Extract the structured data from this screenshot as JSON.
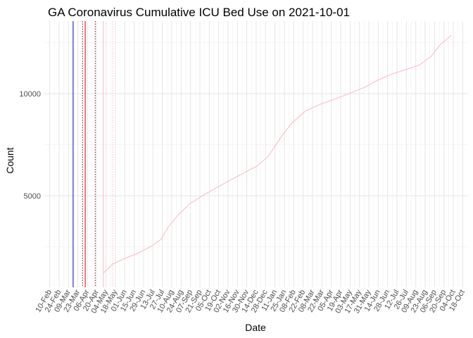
{
  "chart_data": {
    "type": "line",
    "title": "GA Coronavirus Cumulative ICU Bed Use on 2021-10-01",
    "x_label": "Date",
    "y_label": "Count",
    "xlim": [
      "2020-02-01",
      "2021-10-26"
    ],
    "ylim": [
      517,
      13550
    ],
    "yticks": [
      5000,
      10000
    ],
    "yminorticks": [
      2500,
      7500,
      12500
    ],
    "grid": true,
    "xticks": [
      {
        "value": "2020-02-10",
        "label": "10-Feb"
      },
      {
        "value": "2020-02-24",
        "label": "24-Feb"
      },
      {
        "value": "2020-03-09",
        "label": "09-Mar"
      },
      {
        "value": "2020-03-23",
        "label": "23-Mar"
      },
      {
        "value": "2020-04-06",
        "label": "06-Apr"
      },
      {
        "value": "2020-04-20",
        "label": "20-Apr"
      },
      {
        "value": "2020-05-04",
        "label": "04-May"
      },
      {
        "value": "2020-05-18",
        "label": "18-May"
      },
      {
        "value": "2020-06-01",
        "label": "01-Jun"
      },
      {
        "value": "2020-06-15",
        "label": "15-Jun"
      },
      {
        "value": "2020-06-29",
        "label": "29-Jun"
      },
      {
        "value": "2020-07-13",
        "label": "13-Jul"
      },
      {
        "value": "2020-07-27",
        "label": "27-Jul"
      },
      {
        "value": "2020-08-10",
        "label": "10-Aug"
      },
      {
        "value": "2020-08-24",
        "label": "24-Aug"
      },
      {
        "value": "2020-09-07",
        "label": "07-Sep"
      },
      {
        "value": "2020-09-21",
        "label": "21-Sep"
      },
      {
        "value": "2020-10-05",
        "label": "05-Oct"
      },
      {
        "value": "2020-10-19",
        "label": "19-Oct"
      },
      {
        "value": "2020-11-02",
        "label": "02-Nov"
      },
      {
        "value": "2020-11-16",
        "label": "16-Nov"
      },
      {
        "value": "2020-11-30",
        "label": "30-Nov"
      },
      {
        "value": "2020-12-14",
        "label": "14-Dec"
      },
      {
        "value": "2020-12-28",
        "label": "28-Dec"
      },
      {
        "value": "2021-01-11",
        "label": "11-Jan"
      },
      {
        "value": "2021-01-25",
        "label": "25-Jan"
      },
      {
        "value": "2021-02-08",
        "label": "08-Feb"
      },
      {
        "value": "2021-02-22",
        "label": "22-Feb"
      },
      {
        "value": "2021-03-08",
        "label": "08-Mar"
      },
      {
        "value": "2021-03-22",
        "label": "22-Mar"
      },
      {
        "value": "2021-04-05",
        "label": "05-Apr"
      },
      {
        "value": "2021-04-19",
        "label": "19-Apr"
      },
      {
        "value": "2021-05-03",
        "label": "03-May"
      },
      {
        "value": "2021-05-17",
        "label": "17-May"
      },
      {
        "value": "2021-05-31",
        "label": "31-May"
      },
      {
        "value": "2021-06-14",
        "label": "14-Jun"
      },
      {
        "value": "2021-06-28",
        "label": "28-Jun"
      },
      {
        "value": "2021-07-12",
        "label": "12-Jul"
      },
      {
        "value": "2021-07-26",
        "label": "26-Jul"
      },
      {
        "value": "2021-08-09",
        "label": "09-Aug"
      },
      {
        "value": "2021-08-23",
        "label": "23-Aug"
      },
      {
        "value": "2021-09-06",
        "label": "06-Sep"
      },
      {
        "value": "2021-09-20",
        "label": "20-Sep"
      },
      {
        "value": "2021-10-04",
        "label": "04-Oct"
      },
      {
        "value": "2021-10-18",
        "label": "18-Oct"
      }
    ],
    "x": [
      "2020-04-30",
      "2020-05-14",
      "2020-06-01",
      "2020-06-20",
      "2020-07-10",
      "2020-07-25",
      "2020-08-05",
      "2020-08-20",
      "2020-09-05",
      "2020-09-25",
      "2020-10-15",
      "2020-11-05",
      "2020-11-25",
      "2020-12-15",
      "2021-01-01",
      "2021-01-20",
      "2021-02-05",
      "2021-02-25",
      "2021-03-20",
      "2021-04-10",
      "2021-05-01",
      "2021-05-25",
      "2021-06-15",
      "2021-07-05",
      "2021-07-25",
      "2021-08-15",
      "2021-09-01",
      "2021-09-15",
      "2021-10-01"
    ],
    "series": [
      {
        "color": "#ffb6c1",
        "values": [
          1207,
          1655,
          1931,
          2172,
          2517,
          2862,
          3483,
          4069,
          4586,
          5000,
          5379,
          5759,
          6103,
          6448,
          6931,
          7862,
          8552,
          9138,
          9483,
          9724,
          10000,
          10310,
          10690,
          10966,
          11172,
          11414,
          11828,
          12414,
          12862
        ]
      }
    ],
    "vlines": [
      {
        "x": "2020-03-16",
        "color": "#0000cd",
        "style": "solid"
      },
      {
        "x": "2020-03-30",
        "color": "#8b0000",
        "style": "dotted"
      },
      {
        "x": "2020-04-03",
        "color": "#cc0000",
        "style": "solid"
      },
      {
        "x": "2020-04-18",
        "color": "#8b0000",
        "style": "dotted"
      },
      {
        "x": "2020-04-30",
        "color": "#ffb6c1",
        "style": "solid"
      },
      {
        "x": "2020-05-14",
        "color": "#ffb6c1",
        "style": "dotted"
      }
    ]
  }
}
